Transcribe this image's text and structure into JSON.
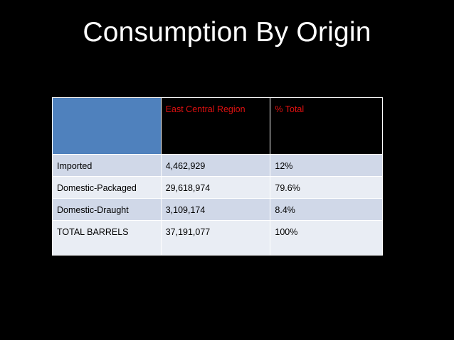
{
  "slide": {
    "title": "Consumption By Origin"
  },
  "table": {
    "headers": [
      "",
      "East Central Region",
      "% Total"
    ],
    "rows": [
      {
        "label": "Imported",
        "value": "4,462,929",
        "percent": "12%"
      },
      {
        "label": "Domestic-Packaged",
        "value": "29,618,974",
        "percent": "79.6%"
      },
      {
        "label": "Domestic-Draught",
        "value": "3,109,174",
        "percent": "8.4%"
      },
      {
        "label": "TOTAL BARRELS",
        "value": "37,191,077",
        "percent": "100%"
      }
    ]
  },
  "colors": {
    "background": "#000000",
    "title": "#ffffff",
    "header_text": "#e01010",
    "corner_cell": "#4f81bd",
    "row_dark": "#d0d8e8",
    "row_light": "#e9edf4"
  }
}
